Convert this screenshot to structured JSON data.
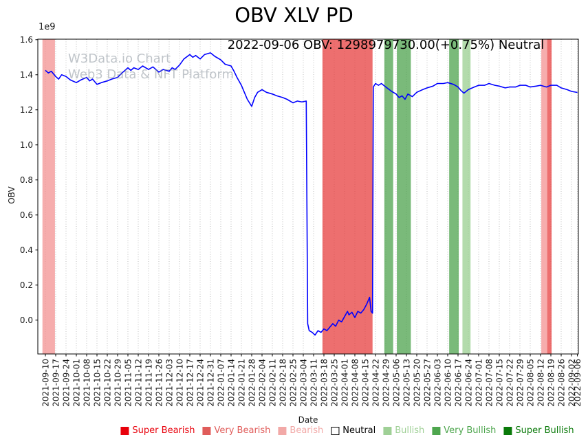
{
  "header": {
    "title": "OBV XLV PD",
    "subtitle": "2022-09-06 OBV: 1298979730.00(+0.75%) Neutral"
  },
  "watermark": {
    "line1": "W3Data.io Chart",
    "line2": "Web3 Data & NFT Platform"
  },
  "chart_data": {
    "type": "line",
    "title": "OBV XLV PD",
    "xlabel": "Date",
    "ylabel": "OBV",
    "y_offset_label": "1e9",
    "y_units": "1e9",
    "grid": "vertical-dotted",
    "ylim": [
      -0.193,
      1.603
    ],
    "y_ticks": [
      0.0,
      0.2,
      0.4,
      0.6,
      0.8,
      1.0,
      1.2,
      1.4,
      1.6
    ],
    "y_tick_labels": [
      "0.0",
      "0.2",
      "0.4",
      "0.6",
      "0.8",
      "1.0",
      "1.2",
      "1.4",
      "1.6"
    ],
    "x_tick_labels": [
      "2021-09-10",
      "2021-09-17",
      "2021-09-24",
      "2021-10-01",
      "2021-10-08",
      "2021-10-15",
      "2021-10-22",
      "2021-10-29",
      "2021-11-05",
      "2021-11-12",
      "2021-11-19",
      "2021-11-26",
      "2021-12-03",
      "2021-12-10",
      "2021-12-17",
      "2021-12-24",
      "2021-12-31",
      "2022-01-07",
      "2022-01-14",
      "2022-01-21",
      "2022-01-28",
      "2022-02-04",
      "2022-02-11",
      "2022-02-18",
      "2022-02-25",
      "2022-03-04",
      "2022-03-11",
      "2022-03-18",
      "2022-03-25",
      "2022-04-01",
      "2022-04-08",
      "2022-04-15",
      "2022-04-22",
      "2022-04-29",
      "2022-05-06",
      "2022-05-13",
      "2022-05-20",
      "2022-05-27",
      "2022-06-03",
      "2022-06-10",
      "2022-06-17",
      "2022-06-24",
      "2022-07-01",
      "2022-07-08",
      "2022-07-15",
      "2022-07-22",
      "2022-07-29",
      "2022-08-05",
      "2022-08-12",
      "2022-08-19",
      "2022-08-26",
      "2022-09-02",
      "2022-09-06"
    ],
    "x_tick_days": [
      0,
      7,
      14,
      21,
      28,
      35,
      42,
      49,
      56,
      63,
      70,
      77,
      84,
      91,
      98,
      105,
      112,
      119,
      126,
      133,
      140,
      147,
      154,
      161,
      168,
      175,
      182,
      189,
      196,
      203,
      210,
      217,
      224,
      231,
      238,
      245,
      252,
      259,
      266,
      273,
      280,
      287,
      294,
      301,
      308,
      315,
      322,
      329,
      336,
      343,
      350,
      357,
      361
    ],
    "series": [
      {
        "name": "OBV",
        "color": "#0000ff",
        "x_days": [
          0,
          2,
          4,
          7,
          9,
          11,
          14,
          17,
          21,
          24,
          28,
          30,
          32,
          35,
          38,
          42,
          45,
          49,
          52,
          56,
          58,
          60,
          63,
          66,
          70,
          73,
          77,
          80,
          84,
          86,
          88,
          91,
          94,
          98,
          100,
          102,
          105,
          108,
          112,
          115,
          119,
          122,
          126,
          128,
          130,
          133,
          135,
          137,
          140,
          142,
          144,
          147,
          150,
          154,
          157,
          161,
          164,
          168,
          171,
          174,
          177,
          178,
          179,
          181,
          183,
          185,
          187,
          189,
          191,
          193,
          195,
          197,
          199,
          201,
          203,
          205,
          206,
          208,
          210,
          212,
          214,
          216,
          218,
          220,
          221,
          222,
          222.5,
          224,
          226,
          228,
          231,
          235,
          238,
          240,
          242,
          244,
          246,
          249,
          252,
          256,
          259,
          263,
          266,
          270,
          273,
          277,
          280,
          282,
          284,
          287,
          291,
          294,
          298,
          301,
          305,
          308,
          312,
          315,
          319,
          322,
          326,
          329,
          333,
          336,
          340,
          343,
          347,
          350,
          354,
          357,
          361
        ],
        "values": [
          1.425,
          1.41,
          1.42,
          1.39,
          1.375,
          1.4,
          1.39,
          1.37,
          1.355,
          1.37,
          1.385,
          1.365,
          1.375,
          1.345,
          1.355,
          1.365,
          1.375,
          1.385,
          1.41,
          1.44,
          1.425,
          1.44,
          1.43,
          1.45,
          1.43,
          1.445,
          1.415,
          1.43,
          1.42,
          1.44,
          1.43,
          1.455,
          1.49,
          1.515,
          1.5,
          1.51,
          1.49,
          1.515,
          1.525,
          1.505,
          1.485,
          1.46,
          1.45,
          1.42,
          1.385,
          1.34,
          1.3,
          1.26,
          1.22,
          1.27,
          1.3,
          1.315,
          1.3,
          1.29,
          1.28,
          1.27,
          1.26,
          1.24,
          1.25,
          1.245,
          1.25,
          -0.02,
          -0.06,
          -0.07,
          -0.085,
          -0.06,
          -0.07,
          -0.05,
          -0.06,
          -0.04,
          -0.02,
          -0.035,
          0.0,
          -0.01,
          0.02,
          0.05,
          0.03,
          0.045,
          0.015,
          0.05,
          0.04,
          0.06,
          0.09,
          0.13,
          0.05,
          0.04,
          1.33,
          1.35,
          1.34,
          1.35,
          1.33,
          1.305,
          1.29,
          1.27,
          1.28,
          1.26,
          1.29,
          1.275,
          1.3,
          1.315,
          1.325,
          1.335,
          1.35,
          1.35,
          1.355,
          1.345,
          1.33,
          1.31,
          1.295,
          1.315,
          1.33,
          1.34,
          1.34,
          1.35,
          1.34,
          1.335,
          1.325,
          1.33,
          1.33,
          1.34,
          1.34,
          1.33,
          1.335,
          1.34,
          1.33,
          1.34,
          1.34,
          1.325,
          1.315,
          1.305,
          1.299
        ]
      }
    ],
    "bands": [
      {
        "start_day": -2,
        "end_day": 6.5,
        "category": "bearish"
      },
      {
        "start_day": 188,
        "end_day": 222,
        "category": "very_bearish"
      },
      {
        "start_day": 230,
        "end_day": 236,
        "category": "very_bullish"
      },
      {
        "start_day": 238.5,
        "end_day": 248,
        "category": "very_bullish"
      },
      {
        "start_day": 274,
        "end_day": 280.5,
        "category": "very_bullish"
      },
      {
        "start_day": 283,
        "end_day": 288.5,
        "category": "bullish"
      },
      {
        "start_day": 336.5,
        "end_day": 340.5,
        "category": "bearish"
      },
      {
        "start_day": 340.5,
        "end_day": 343.5,
        "category": "very_bearish"
      }
    ],
    "category_fills": {
      "super_bearish": "rgba(255,0,0,0.9)",
      "very_bearish": "rgba(230,55,55,0.72)",
      "bearish": "rgba(242,142,142,0.72)",
      "neutral": "rgba(255,255,255,0)",
      "bullish": "rgba(150,205,140,0.72)",
      "very_bullish": "rgba(70,160,70,0.72)",
      "super_bullish": "rgba(0,120,0,0.9)"
    }
  },
  "legend": {
    "items": [
      {
        "label": "Super Bearish",
        "category": "super_bearish"
      },
      {
        "label": "Very Bearish",
        "category": "very_bearish"
      },
      {
        "label": "Bearish",
        "category": "bearish"
      },
      {
        "label": "Neutral",
        "category": "neutral"
      },
      {
        "label": "Bullish",
        "category": "bullish"
      },
      {
        "label": "Very Bullish",
        "category": "very_bullish"
      },
      {
        "label": "Super Bullish",
        "category": "super_bullish"
      }
    ],
    "colors": {
      "super_bearish": "#e8000b",
      "very_bearish": "#e05c5a",
      "bearish": "#f2a9a7",
      "neutral": "#ffffff",
      "bullish": "#9fd096",
      "very_bullish": "#4ea64e",
      "super_bullish": "#0a7a0a"
    }
  }
}
